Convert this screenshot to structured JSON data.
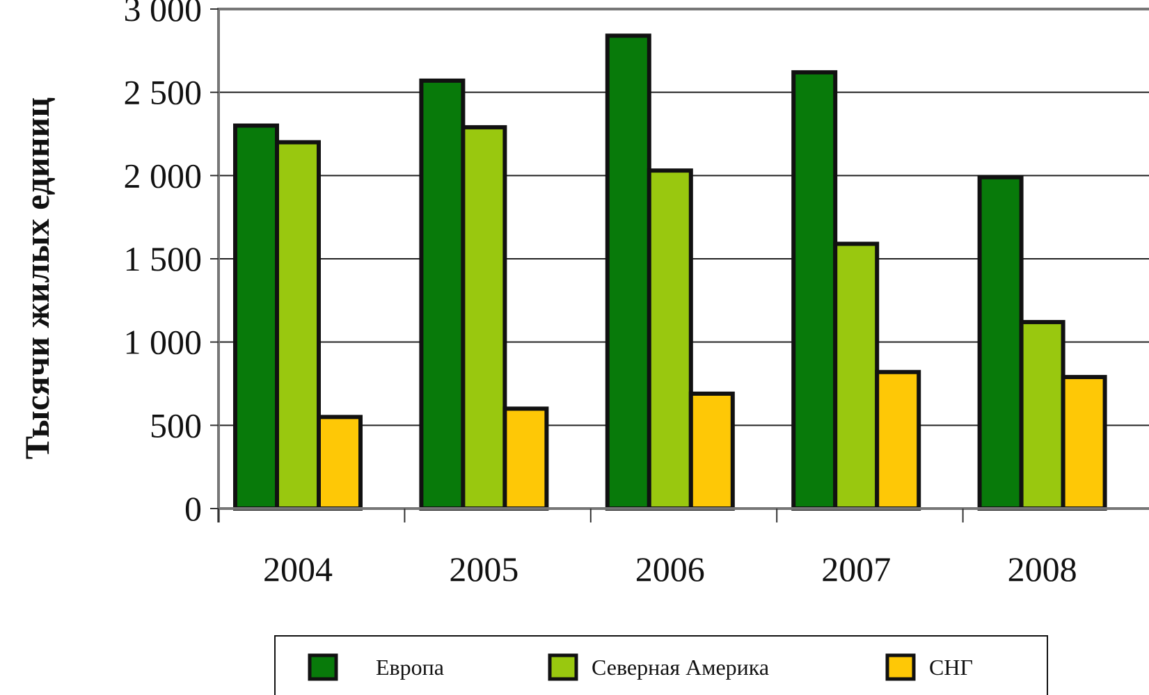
{
  "chart_data": {
    "type": "bar",
    "title": "",
    "xlabel": "",
    "ylabel": "Тысячи жилых единиц",
    "categories": [
      "2004",
      "2005",
      "2006",
      "2007",
      "2008"
    ],
    "series": [
      {
        "name": "Европа",
        "values": [
          2300,
          2570,
          2840,
          2620,
          1990
        ],
        "color": "#087a0a"
      },
      {
        "name": "Северная Америка",
        "values": [
          2200,
          2290,
          2030,
          1590,
          1120
        ],
        "color": "#99c80f"
      },
      {
        "name": "СНГ",
        "values": [
          550,
          600,
          690,
          820,
          790
        ],
        "color": "#fec806"
      }
    ],
    "yticks": [
      "0",
      "500",
      "1 000",
      "1 500",
      "2 000",
      "2 500",
      "3 000"
    ],
    "ylim": [
      0,
      3000
    ],
    "grid": true,
    "legend_position": "bottom"
  }
}
